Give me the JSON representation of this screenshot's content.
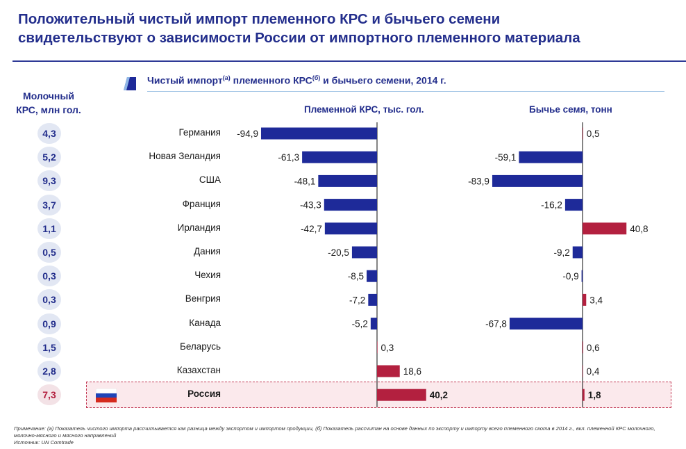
{
  "title_lines": [
    "Положительный чистый импорт племенного КРС и бычьего семени",
    "свидетельствуют о зависимости России от импортного племенного материала"
  ],
  "subtitle": {
    "part1": "Чистый импорт",
    "sup1": "(а)",
    "part2": " племенного КРС",
    "sup2": "(б)",
    "part3": " и бычьего семени, 2014 г."
  },
  "left_header": {
    "line1": "Молочный",
    "line2": "КРС, млн гол."
  },
  "colors": {
    "negative": "#1e2a99",
    "positive": "#b3203f",
    "title": "#232e8c"
  },
  "highlight_country": "Россия",
  "chart_data": [
    {
      "type": "bar",
      "orientation": "horizontal",
      "title": "Племенной КРС, тыс. гол.",
      "categories": [
        "Германия",
        "Новая Зеландия",
        "США",
        "Франция",
        "Ирландия",
        "Дания",
        "Чехия",
        "Венгрия",
        "Канада",
        "Беларусь",
        "Казахстан",
        "Россия"
      ],
      "values": [
        -94.9,
        -61.3,
        -48.1,
        -43.3,
        -42.7,
        -20.5,
        -8.5,
        -7.2,
        -5.2,
        0.3,
        18.6,
        40.2
      ],
      "labels": [
        "-94,9",
        "-61,3",
        "-48,1",
        "-43,3",
        "-42,7",
        "-20,5",
        "-8,5",
        "-7,2",
        "-5,2",
        "0,3",
        "18,6",
        "40,2"
      ]
    },
    {
      "type": "bar",
      "orientation": "horizontal",
      "title": "Бычье семя, тонн",
      "categories": [
        "Германия",
        "Новая Зеландия",
        "США",
        "Франция",
        "Ирландия",
        "Дания",
        "Чехия",
        "Венгрия",
        "Канада",
        "Беларусь",
        "Казахстан",
        "Россия"
      ],
      "values": [
        0.5,
        -59.1,
        -83.9,
        -16.2,
        40.8,
        -9.2,
        -0.9,
        3.4,
        -67.8,
        0.6,
        0.4,
        1.8
      ],
      "labels": [
        "0,5",
        "-59,1",
        "-83,9",
        "-16,2",
        "40,8",
        "-9,2",
        "-0,9",
        "3,4",
        "-67,8",
        "0,6",
        "0,4",
        "1,8"
      ]
    }
  ],
  "dairy_cattle": [
    "4,3",
    "5,2",
    "9,3",
    "3,7",
    "1,1",
    "0,5",
    "0,3",
    "0,3",
    "0,9",
    "1,5",
    "2,8",
    "7,3"
  ],
  "notes": [
    "Примечание: (а) Показатель чистого импорта рассчитывается как разница между экспортом и импортом продукции, (б) Показатель рассчитан на основе данных по экспорту и импорту всего племенного скота в 2014 г., вкл. племенной КРС молочного, молочно-мясного и мясного направлений",
    "Источник: UN Comtrade"
  ]
}
